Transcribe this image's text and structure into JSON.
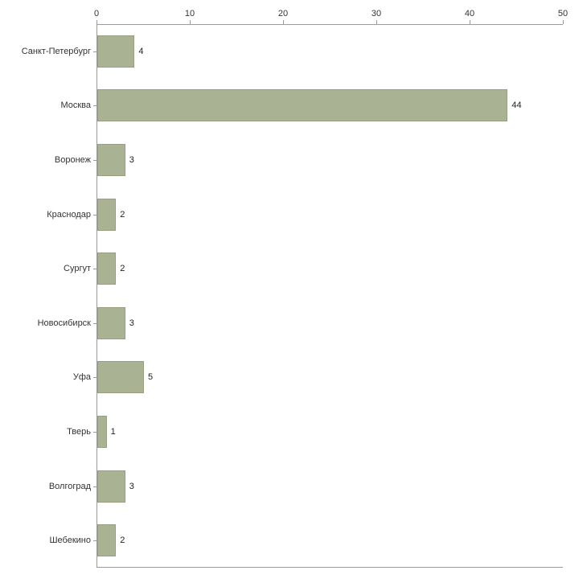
{
  "chart_data": {
    "type": "bar",
    "orientation": "horizontal",
    "title": "",
    "xlabel": "",
    "ylabel": "",
    "categories": [
      "Санкт-Петербург",
      "Москва",
      "Воронеж",
      "Краснодар",
      "Сургут",
      "Новосибирск",
      "Уфа",
      "Тверь",
      "Волгоград",
      "Шебекино"
    ],
    "values": [
      4,
      44,
      3,
      2,
      2,
      3,
      5,
      1,
      3,
      2
    ],
    "x_ticks": [
      0,
      10,
      20,
      30,
      40,
      50
    ],
    "xlim": [
      0,
      50
    ],
    "grid": false,
    "legend": "none",
    "colors": {
      "bar_fill": "#a9b293",
      "bar_border": "#96a07e",
      "axis": "#9a9a9a",
      "tick_text": "#333333",
      "value_text": "#222222",
      "background": "#ffffff"
    }
  }
}
